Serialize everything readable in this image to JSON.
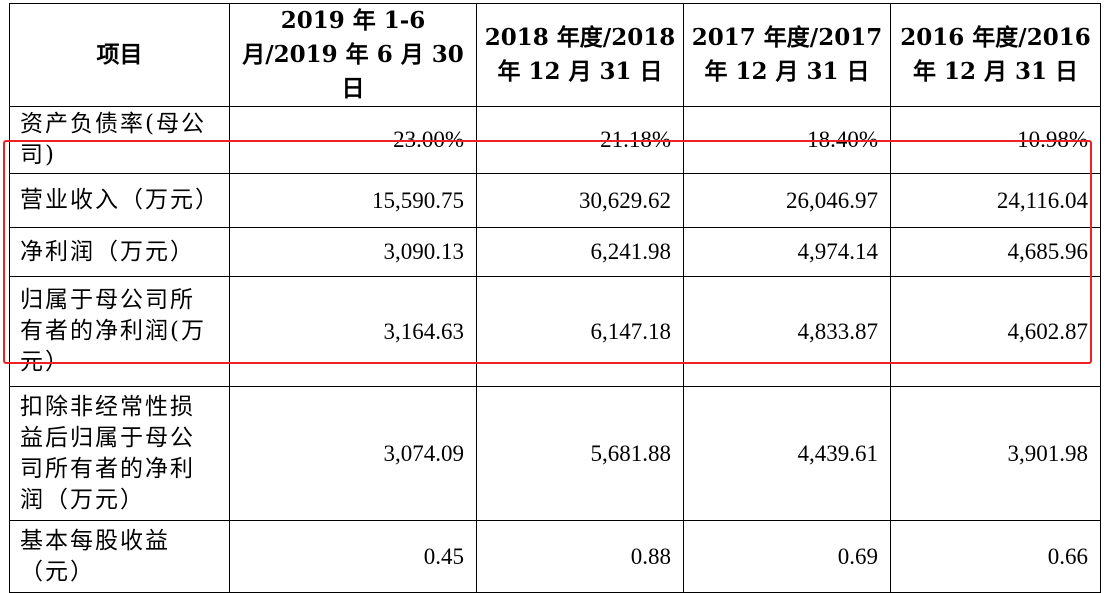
{
  "table": {
    "header": {
      "item_label": "项目",
      "periods": [
        "2019 年 1-6 月/2019 年 6 月 30 日",
        "2018 年度/2018 年 12 月 31 日",
        "2017 年度/2017 年 12 月 31 日",
        "2016 年度/2016 年 12 月 31 日"
      ]
    },
    "rows": [
      {
        "label": "资产负债率(母公司)",
        "values": [
          "23.00%",
          "21.18%",
          "18.40%",
          "10.98%"
        ]
      },
      {
        "label": "营业收入（万元）",
        "values": [
          "15,590.75",
          "30,629.62",
          "26,046.97",
          "24,116.04"
        ]
      },
      {
        "label": "净利润（万元）",
        "values": [
          "3,090.13",
          "6,241.98",
          "4,974.14",
          "4,685.96"
        ]
      },
      {
        "label": "归属于母公司所有者的净利润(万元）",
        "values": [
          "3,164.63",
          "6,147.18",
          "4,833.87",
          "4,602.87"
        ]
      },
      {
        "label": "扣除非经常性损益后归属于母公司所有者的净利润（万元）",
        "values": [
          "3,074.09",
          "5,681.88",
          "4,439.61",
          "3,901.98"
        ]
      },
      {
        "label": "基本每股收益（元）",
        "values": [
          "0.45",
          "0.88",
          "0.69",
          "0.66"
        ]
      }
    ]
  },
  "highlight": {
    "color": "#ee2222",
    "rows": [
      "营业收入（万元）",
      "净利润（万元）",
      "归属于母公司所有者的净利润(万元）"
    ]
  }
}
